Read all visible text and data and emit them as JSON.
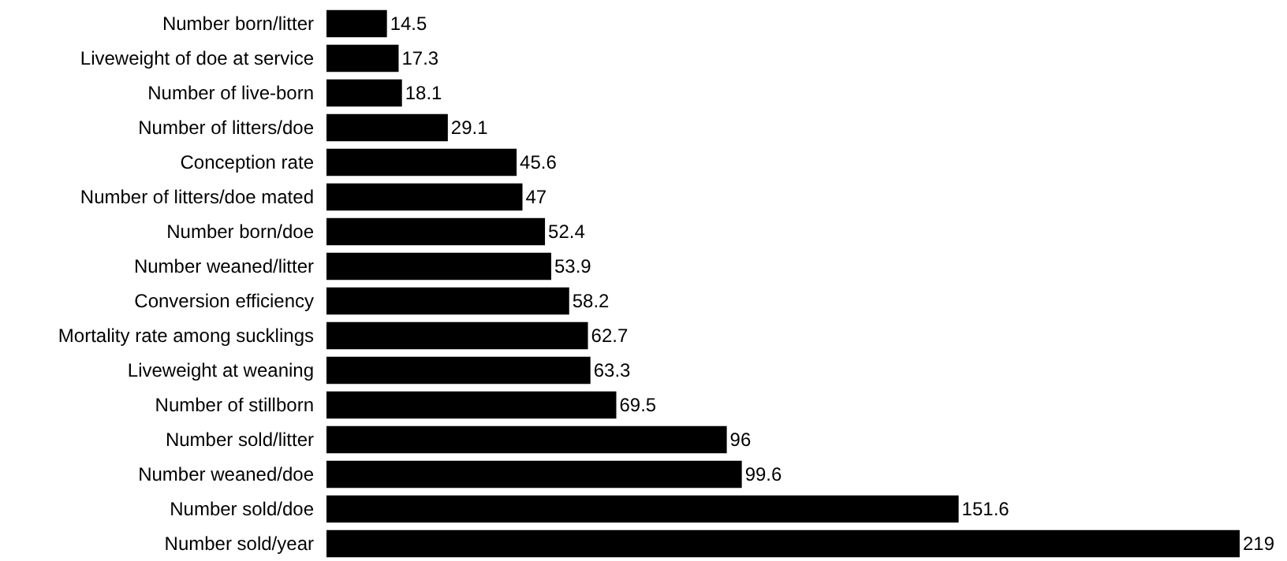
{
  "chart_data": {
    "type": "bar",
    "orientation": "horizontal",
    "data_labels": true,
    "color": "#000000",
    "categories": [
      "Number born/litter",
      "Liveweight of doe at service",
      "Number of live-born",
      "Number of litters/doe",
      "Conception rate",
      "Number of litters/doe mated",
      "Number born/doe",
      "Number weaned/litter",
      "Conversion efficiency",
      "Mortality rate among sucklings",
      "Liveweight at weaning",
      "Number of stillborn",
      "Number sold/litter",
      "Number weaned/doe",
      "Number sold/doe",
      "Number sold/year"
    ],
    "values": [
      14.5,
      17.3,
      18.1,
      29.1,
      45.6,
      47,
      52.4,
      53.9,
      58.2,
      62.7,
      63.3,
      69.5,
      96,
      99.6,
      151.6,
      219
    ]
  }
}
